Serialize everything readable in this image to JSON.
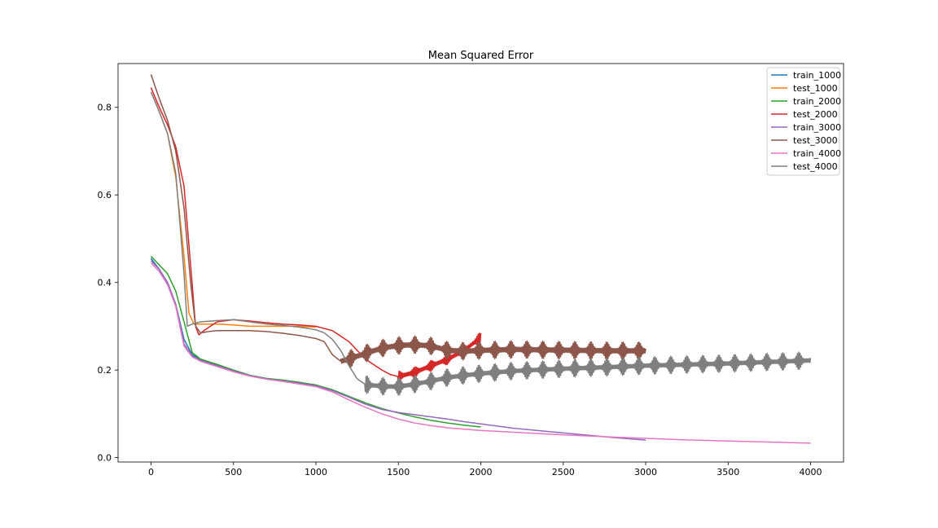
{
  "chart_data": {
    "type": "line",
    "title": "Mean Squared Error",
    "xlabel": "",
    "ylabel": "",
    "xlim": [
      -200,
      4200
    ],
    "ylim": [
      -0.01,
      0.9
    ],
    "xticks": [
      0,
      500,
      1000,
      1500,
      2000,
      2500,
      3000,
      3500,
      4000
    ],
    "yticks": [
      0.0,
      0.2,
      0.4,
      0.6,
      0.8
    ],
    "ytick_labels": [
      "0.0",
      "0.2",
      "0.4",
      "0.6",
      "0.8"
    ],
    "grid": false,
    "legend_position": "top-right",
    "series": [
      {
        "name": "train_1000",
        "color": "#1f77b4",
        "points": [
          [
            0,
            0.455
          ],
          [
            50,
            0.43
          ],
          [
            100,
            0.4
          ],
          [
            150,
            0.35
          ],
          [
            200,
            0.27
          ],
          [
            250,
            0.235
          ],
          [
            300,
            0.225
          ],
          [
            400,
            0.212
          ],
          [
            500,
            0.198
          ],
          [
            600,
            0.187
          ],
          [
            700,
            0.18
          ],
          [
            800,
            0.176
          ],
          [
            900,
            0.171
          ],
          [
            1000,
            0.165
          ]
        ],
        "noise": []
      },
      {
        "name": "test_1000",
        "color": "#ff7f0e",
        "points": [
          [
            0,
            0.835
          ],
          [
            50,
            0.79
          ],
          [
            100,
            0.74
          ],
          [
            150,
            0.64
          ],
          [
            200,
            0.46
          ],
          [
            230,
            0.33
          ],
          [
            260,
            0.305
          ],
          [
            300,
            0.305
          ],
          [
            400,
            0.305
          ],
          [
            500,
            0.303
          ],
          [
            600,
            0.3
          ],
          [
            700,
            0.3
          ],
          [
            800,
            0.3
          ],
          [
            900,
            0.3
          ],
          [
            1000,
            0.298
          ]
        ],
        "noise": []
      },
      {
        "name": "train_2000",
        "color": "#2ca02c",
        "points": [
          [
            0,
            0.46
          ],
          [
            50,
            0.44
          ],
          [
            100,
            0.42
          ],
          [
            150,
            0.38
          ],
          [
            200,
            0.31
          ],
          [
            250,
            0.24
          ],
          [
            300,
            0.225
          ],
          [
            400,
            0.213
          ],
          [
            500,
            0.2
          ],
          [
            600,
            0.188
          ],
          [
            700,
            0.181
          ],
          [
            800,
            0.177
          ],
          [
            900,
            0.172
          ],
          [
            1000,
            0.166
          ],
          [
            1100,
            0.155
          ],
          [
            1200,
            0.14
          ],
          [
            1300,
            0.125
          ],
          [
            1400,
            0.112
          ],
          [
            1500,
            0.102
          ],
          [
            1600,
            0.093
          ],
          [
            1700,
            0.085
          ],
          [
            1800,
            0.079
          ],
          [
            1900,
            0.074
          ],
          [
            2000,
            0.07
          ]
        ],
        "noise": []
      },
      {
        "name": "test_2000",
        "color": "#d62728",
        "points": [
          [
            0,
            0.845
          ],
          [
            50,
            0.8
          ],
          [
            100,
            0.76
          ],
          [
            150,
            0.71
          ],
          [
            200,
            0.62
          ],
          [
            240,
            0.44
          ],
          [
            270,
            0.3
          ],
          [
            290,
            0.28
          ],
          [
            320,
            0.29
          ],
          [
            400,
            0.31
          ],
          [
            500,
            0.315
          ],
          [
            600,
            0.312
          ],
          [
            700,
            0.308
          ],
          [
            800,
            0.305
          ],
          [
            900,
            0.303
          ],
          [
            1000,
            0.3
          ],
          [
            1100,
            0.29
          ],
          [
            1200,
            0.265
          ],
          [
            1300,
            0.225
          ],
          [
            1400,
            0.2
          ],
          [
            1450,
            0.19
          ],
          [
            1500,
            0.185
          ],
          [
            1600,
            0.195
          ],
          [
            1700,
            0.21
          ],
          [
            1800,
            0.225
          ],
          [
            1900,
            0.245
          ],
          [
            1950,
            0.26
          ],
          [
            2000,
            0.275
          ]
        ],
        "noise": [
          [
            1500,
            2000,
            0.004,
            0.012
          ]
        ]
      },
      {
        "name": "train_3000",
        "color": "#9467bd",
        "points": [
          [
            0,
            0.45
          ],
          [
            50,
            0.43
          ],
          [
            100,
            0.4
          ],
          [
            150,
            0.35
          ],
          [
            200,
            0.26
          ],
          [
            250,
            0.232
          ],
          [
            300,
            0.222
          ],
          [
            400,
            0.21
          ],
          [
            500,
            0.198
          ],
          [
            600,
            0.187
          ],
          [
            700,
            0.18
          ],
          [
            800,
            0.175
          ],
          [
            900,
            0.17
          ],
          [
            1000,
            0.164
          ],
          [
            1100,
            0.153
          ],
          [
            1200,
            0.138
          ],
          [
            1300,
            0.122
          ],
          [
            1400,
            0.11
          ],
          [
            1500,
            0.103
          ],
          [
            1600,
            0.098
          ],
          [
            1700,
            0.093
          ],
          [
            1800,
            0.088
          ],
          [
            1900,
            0.082
          ],
          [
            2000,
            0.077
          ],
          [
            2200,
            0.067
          ],
          [
            2400,
            0.06
          ],
          [
            2600,
            0.053
          ],
          [
            2800,
            0.046
          ],
          [
            3000,
            0.04
          ]
        ],
        "noise": []
      },
      {
        "name": "test_3000",
        "color": "#8c564b",
        "points": [
          [
            0,
            0.875
          ],
          [
            50,
            0.82
          ],
          [
            100,
            0.77
          ],
          [
            150,
            0.7
          ],
          [
            200,
            0.57
          ],
          [
            240,
            0.4
          ],
          [
            270,
            0.3
          ],
          [
            300,
            0.285
          ],
          [
            350,
            0.288
          ],
          [
            400,
            0.29
          ],
          [
            500,
            0.29
          ],
          [
            600,
            0.29
          ],
          [
            700,
            0.288
          ],
          [
            800,
            0.284
          ],
          [
            900,
            0.279
          ],
          [
            1000,
            0.272
          ],
          [
            1050,
            0.265
          ],
          [
            1100,
            0.235
          ],
          [
            1150,
            0.22
          ],
          [
            1200,
            0.225
          ],
          [
            1300,
            0.238
          ],
          [
            1400,
            0.25
          ],
          [
            1500,
            0.256
          ],
          [
            1600,
            0.258
          ],
          [
            1700,
            0.255
          ],
          [
            1800,
            0.245
          ],
          [
            1900,
            0.243
          ],
          [
            2000,
            0.245
          ],
          [
            2200,
            0.247
          ],
          [
            2400,
            0.246
          ],
          [
            2600,
            0.245
          ],
          [
            2800,
            0.244
          ],
          [
            3000,
            0.244
          ]
        ],
        "noise": [
          [
            1150,
            3000,
            0.005,
            0.02
          ]
        ]
      },
      {
        "name": "train_4000",
        "color": "#e377c2",
        "points": [
          [
            0,
            0.445
          ],
          [
            50,
            0.425
          ],
          [
            100,
            0.395
          ],
          [
            150,
            0.345
          ],
          [
            200,
            0.255
          ],
          [
            250,
            0.23
          ],
          [
            300,
            0.22
          ],
          [
            400,
            0.208
          ],
          [
            500,
            0.196
          ],
          [
            600,
            0.186
          ],
          [
            700,
            0.179
          ],
          [
            800,
            0.174
          ],
          [
            900,
            0.168
          ],
          [
            1000,
            0.162
          ],
          [
            1100,
            0.15
          ],
          [
            1200,
            0.132
          ],
          [
            1300,
            0.115
          ],
          [
            1400,
            0.1
          ],
          [
            1500,
            0.088
          ],
          [
            1600,
            0.079
          ],
          [
            1700,
            0.073
          ],
          [
            1800,
            0.068
          ],
          [
            1900,
            0.065
          ],
          [
            2000,
            0.062
          ],
          [
            2200,
            0.058
          ],
          [
            2500,
            0.052
          ],
          [
            2800,
            0.047
          ],
          [
            3000,
            0.044
          ],
          [
            3200,
            0.041
          ],
          [
            3500,
            0.038
          ],
          [
            3800,
            0.035
          ],
          [
            4000,
            0.033
          ]
        ],
        "noise": []
      },
      {
        "name": "test_4000",
        "color": "#7f7f7f",
        "points": [
          [
            0,
            0.835
          ],
          [
            50,
            0.79
          ],
          [
            100,
            0.74
          ],
          [
            150,
            0.65
          ],
          [
            200,
            0.42
          ],
          [
            220,
            0.3
          ],
          [
            250,
            0.305
          ],
          [
            300,
            0.31
          ],
          [
            400,
            0.313
          ],
          [
            500,
            0.315
          ],
          [
            600,
            0.31
          ],
          [
            700,
            0.305
          ],
          [
            800,
            0.302
          ],
          [
            900,
            0.298
          ],
          [
            1000,
            0.292
          ],
          [
            1050,
            0.285
          ],
          [
            1100,
            0.27
          ],
          [
            1150,
            0.245
          ],
          [
            1200,
            0.21
          ],
          [
            1250,
            0.18
          ],
          [
            1300,
            0.167
          ],
          [
            1400,
            0.163
          ],
          [
            1500,
            0.162
          ],
          [
            1600,
            0.168
          ],
          [
            1700,
            0.175
          ],
          [
            1800,
            0.183
          ],
          [
            1900,
            0.188
          ],
          [
            2000,
            0.192
          ],
          [
            2200,
            0.198
          ],
          [
            2500,
            0.203
          ],
          [
            2800,
            0.207
          ],
          [
            3000,
            0.21
          ],
          [
            3500,
            0.215
          ],
          [
            4000,
            0.222
          ]
        ],
        "noise": [
          [
            1300,
            4000,
            0.004,
            0.02
          ]
        ]
      }
    ]
  }
}
